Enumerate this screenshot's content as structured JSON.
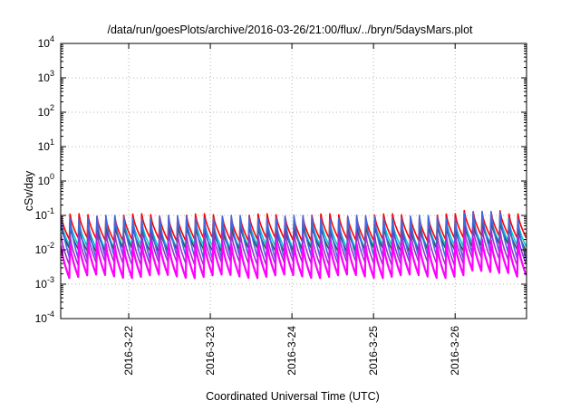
{
  "chart_data": {
    "type": "line",
    "title": "/data/run/goesPlots/archive/2016-03-26/21:00/flux/../bryn/5daysMars.plot",
    "xlabel": "Coordinated Universal Time (UTC)",
    "ylabel": "cSv/day",
    "yscale": "log",
    "ylim": [
      0.0001,
      10000
    ],
    "y_ticks": [
      {
        "base": "10",
        "exp": "-4"
      },
      {
        "base": "10",
        "exp": "-3"
      },
      {
        "base": "10",
        "exp": "-2"
      },
      {
        "base": "10",
        "exp": "-1"
      },
      {
        "base": "10",
        "exp": "0"
      },
      {
        "base": "10",
        "exp": "1"
      },
      {
        "base": "10",
        "exp": "2"
      },
      {
        "base": "10",
        "exp": "3"
      },
      {
        "base": "10",
        "exp": "4"
      }
    ],
    "xlim": [
      "2016-03-21T04:00",
      "2016-03-26T21:00"
    ],
    "x_ticks": [
      {
        "label": "2016-3-22",
        "date": "2016-03-22"
      },
      {
        "label": "2016-3-23",
        "date": "2016-03-23"
      },
      {
        "label": "2016-3-24",
        "date": "2016-03-24"
      },
      {
        "label": "2016-3-25",
        "date": "2016-03-25"
      },
      {
        "label": "2016-3-26",
        "date": "2016-03-26"
      }
    ],
    "grid": true,
    "sawtooth_cycles": 52,
    "series": [
      {
        "color": "#ff0000",
        "peak": 0.1,
        "trough": 0.02
      },
      {
        "color": "#00ced1",
        "peak": 0.065,
        "trough": 0.012
      },
      {
        "color": "#2f4f4f",
        "peak": 0.045,
        "trough": 0.01
      },
      {
        "color": "#4169e1",
        "peak": 0.09,
        "trough": 0.006
      },
      {
        "color": "#9932cc",
        "peak": 0.03,
        "trough": 0.004
      },
      {
        "color": "#ff00ff",
        "peak": 0.015,
        "trough": 0.0017
      }
    ]
  }
}
